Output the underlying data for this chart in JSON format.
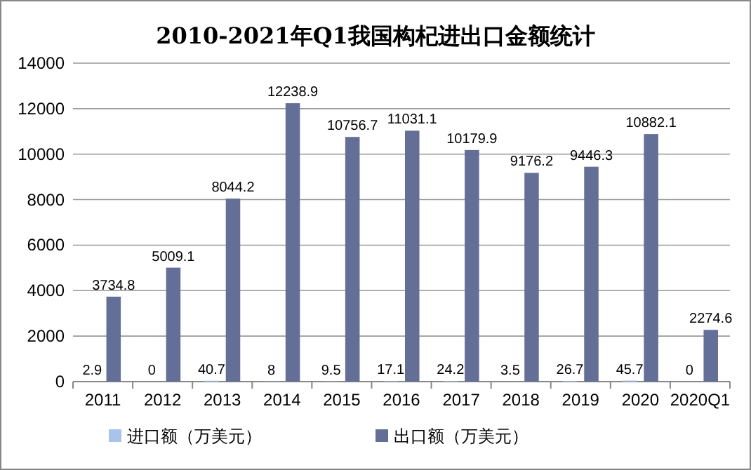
{
  "chart_data": {
    "type": "bar",
    "title": "2010-2021年Q1我国构杞进出口金额统计",
    "categories": [
      "2011",
      "2012",
      "2013",
      "2014",
      "2015",
      "2016",
      "2017",
      "2018",
      "2019",
      "2020",
      "2020Q1"
    ],
    "series": [
      {
        "name": "进口额（万美元）",
        "color": "#a9c4eb",
        "values": [
          2.9,
          0,
          40.7,
          8,
          9.5,
          17.1,
          24.2,
          3.5,
          26.7,
          45.7,
          0
        ]
      },
      {
        "name": "出口额（万美元）",
        "color": "#646f97",
        "values": [
          3734.8,
          5009.1,
          8044.2,
          12238.9,
          10756.7,
          11031.1,
          10179.9,
          9176.2,
          9446.3,
          10882.1,
          2274.6
        ]
      }
    ],
    "ylim": [
      0,
      14000
    ],
    "yticks": [
      0,
      2000,
      4000,
      6000,
      8000,
      10000,
      12000,
      14000
    ],
    "grid": "y",
    "legend": "bottom",
    "data_labels": true
  }
}
